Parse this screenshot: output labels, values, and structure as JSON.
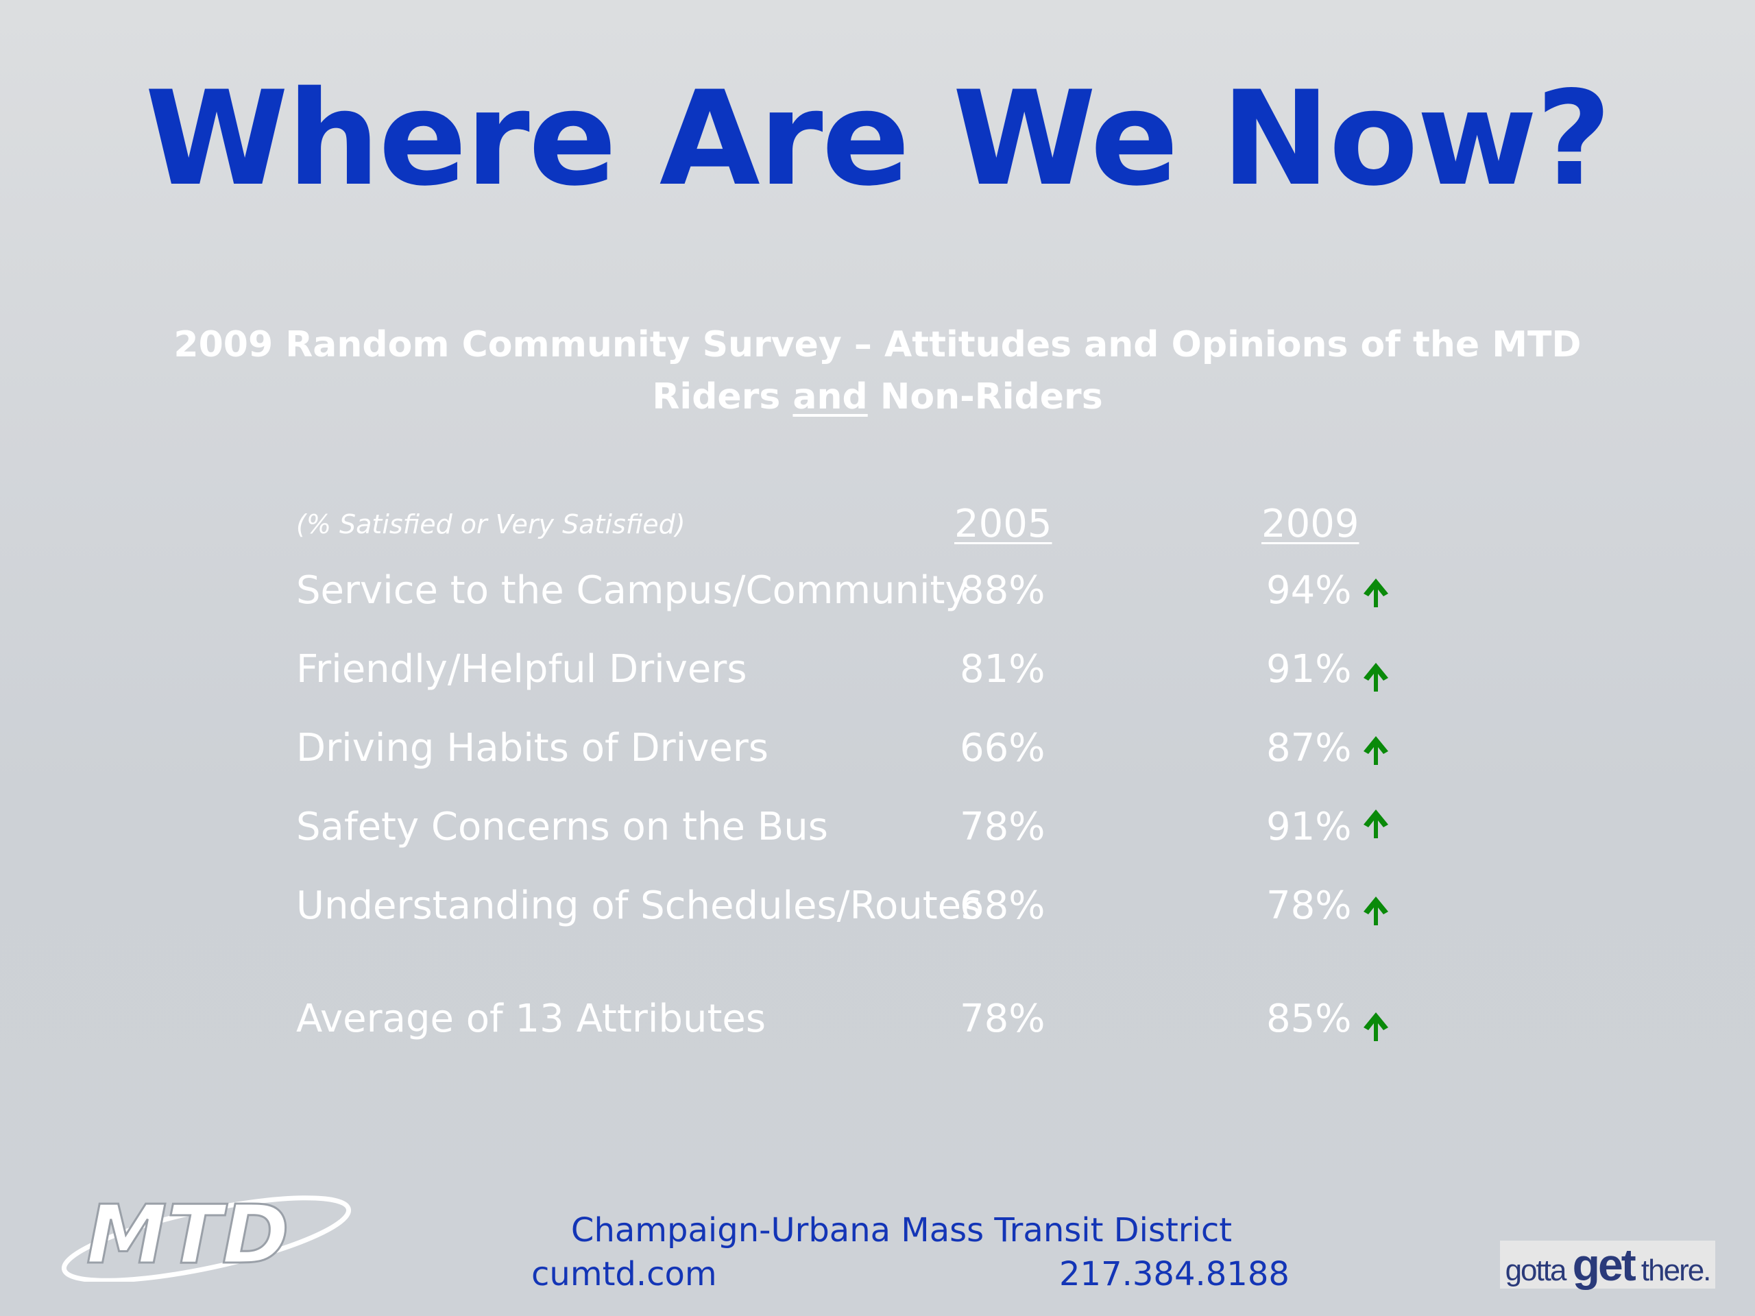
{
  "slide": {
    "title": "Where Are We Now?",
    "subtitle_line1": "2009 Random Community Survey – Attitudes and Opinions of the MTD",
    "subtitle_line2_pre": "Riders ",
    "subtitle_line2_underlined": "and",
    "subtitle_line2_post": " Non-Riders"
  },
  "table": {
    "note": "(% Satisfied or Very Satisfied)",
    "col_2005": "2005",
    "col_2009": "2009",
    "rows": [
      {
        "label": "Service to the Campus/Community",
        "v2005": "88%",
        "v2009": "94%"
      },
      {
        "label": "Friendly/Helpful Drivers",
        "v2005": "81%",
        "v2009": "91%"
      },
      {
        "label": "Driving Habits of Drivers",
        "v2005": "66%",
        "v2009": "87%"
      },
      {
        "label": "Safety Concerns on the Bus",
        "v2005": "78%",
        "v2009": "91%"
      },
      {
        "label": "Understanding of Schedules/Routes",
        "v2005": "68%",
        "v2009": "78%"
      },
      {
        "label": "Average of 13 Attributes",
        "v2005": "78%",
        "v2009": "85%"
      }
    ],
    "arrow_icon": "up-arrow-icon",
    "arrow_color": "#0a8a0a"
  },
  "footer": {
    "logo_text": "MTD",
    "org_name": "Champaign-Urbana Mass Transit District",
    "website": "cumtd.com",
    "phone": "217.384.8188",
    "tagline_pre": "gotta ",
    "tagline_big": "get",
    "tagline_post": " there."
  },
  "colors": {
    "title": "#0b35c0",
    "footer_text": "#1335b6",
    "body_text": "#ffffff"
  }
}
